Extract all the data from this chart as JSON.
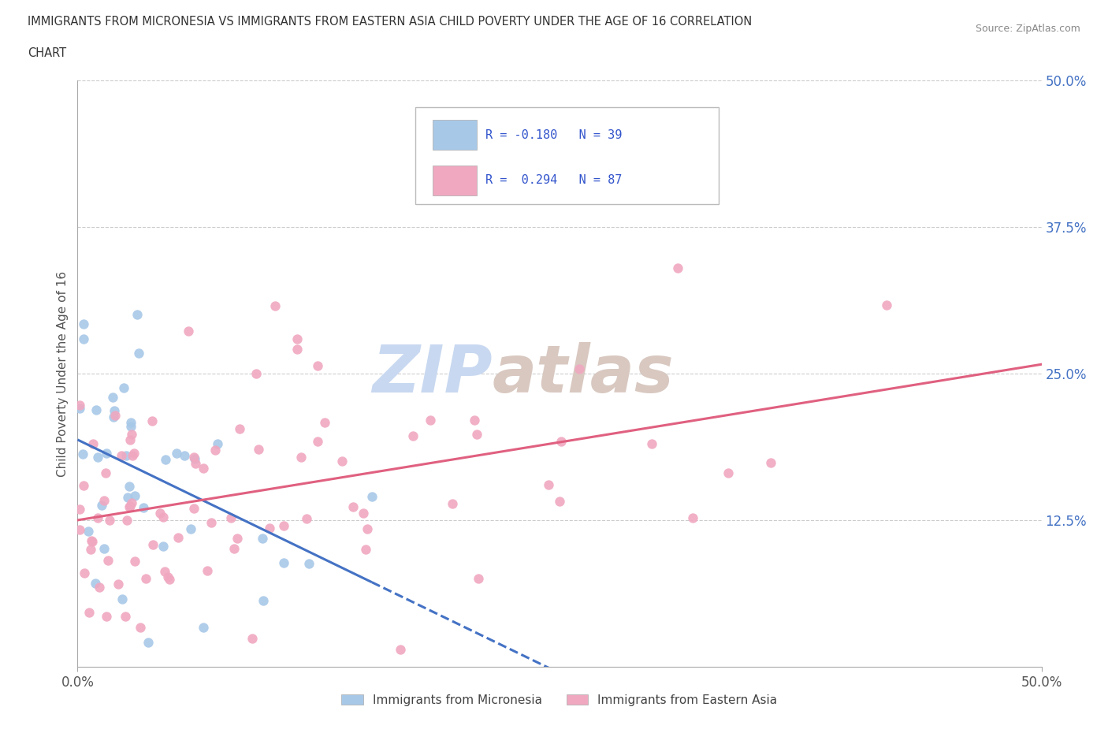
{
  "title_line1": "IMMIGRANTS FROM MICRONESIA VS IMMIGRANTS FROM EASTERN ASIA CHILD POVERTY UNDER THE AGE OF 16 CORRELATION",
  "title_line2": "CHART",
  "source": "Source: ZipAtlas.com",
  "ylabel": "Child Poverty Under the Age of 16",
  "xlim": [
    0.0,
    0.5
  ],
  "ylim": [
    0.0,
    0.5
  ],
  "ytick_values": [
    0.125,
    0.25,
    0.375,
    0.5
  ],
  "ytick_labels": [
    "12.5%",
    "25.0%",
    "37.5%",
    "50.0%"
  ],
  "xtick_values": [
    0.0,
    0.5
  ],
  "xtick_labels": [
    "0.0%",
    "50.0%"
  ],
  "legend_labels_bottom": [
    "Immigrants from Micronesia",
    "Immigrants from Eastern Asia"
  ],
  "blue_scatter_color": "#A8C8E8",
  "pink_scatter_color": "#F0A8C0",
  "blue_line_color": "#4472C4",
  "pink_line_color": "#E06080",
  "watermark_zip_color": "#C8D8F0",
  "watermark_atlas_color": "#D8C8C0",
  "R_mic": -0.18,
  "N_mic": 39,
  "R_ea": 0.294,
  "N_ea": 87,
  "grid_color": "#CCCCCC",
  "text_color": "#333333",
  "tick_color": "#4472C4",
  "background_color": "#FFFFFF"
}
